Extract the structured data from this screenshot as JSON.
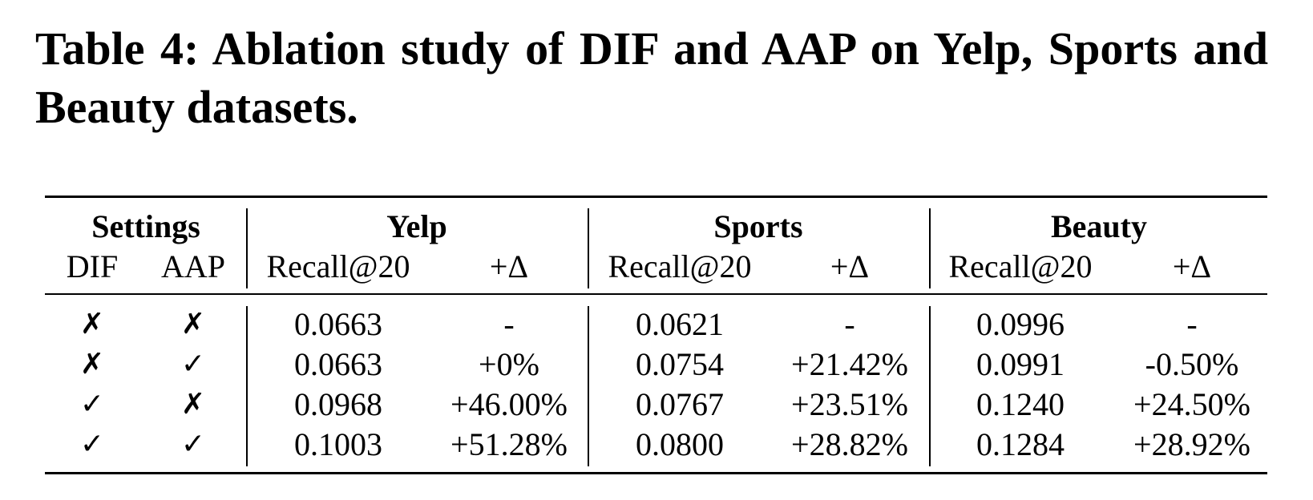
{
  "caption": "Table 4: Ablation study of DIF and AAP on Yelp, Sports and Beauty datasets.",
  "table": {
    "group_headers": {
      "settings": "Settings",
      "yelp": "Yelp",
      "sports": "Sports",
      "beauty": "Beauty"
    },
    "sub_headers": {
      "dif": "DIF",
      "aap": "AAP",
      "recall": "Recall@20",
      "delta": "+Δ"
    },
    "rows": [
      {
        "dif": "✗",
        "aap": "✗",
        "yelp_recall": "0.0663",
        "yelp_delta": "-",
        "sports_recall": "0.0621",
        "sports_delta": "-",
        "beauty_recall": "0.0996",
        "beauty_delta": "-"
      },
      {
        "dif": "✗",
        "aap": "✓",
        "yelp_recall": "0.0663",
        "yelp_delta": "+0%",
        "sports_recall": "0.0754",
        "sports_delta": "+21.42%",
        "beauty_recall": "0.0991",
        "beauty_delta": "-0.50%"
      },
      {
        "dif": "✓",
        "aap": "✗",
        "yelp_recall": "0.0968",
        "yelp_delta": "+46.00%",
        "sports_recall": "0.0767",
        "sports_delta": "+23.51%",
        "beauty_recall": "0.1240",
        "beauty_delta": "+24.50%"
      },
      {
        "dif": "✓",
        "aap": "✓",
        "yelp_recall": "0.1003",
        "yelp_delta": "+51.28%",
        "sports_recall": "0.0800",
        "sports_delta": "+28.82%",
        "beauty_recall": "0.1284",
        "beauty_delta": "+28.92%"
      }
    ]
  }
}
